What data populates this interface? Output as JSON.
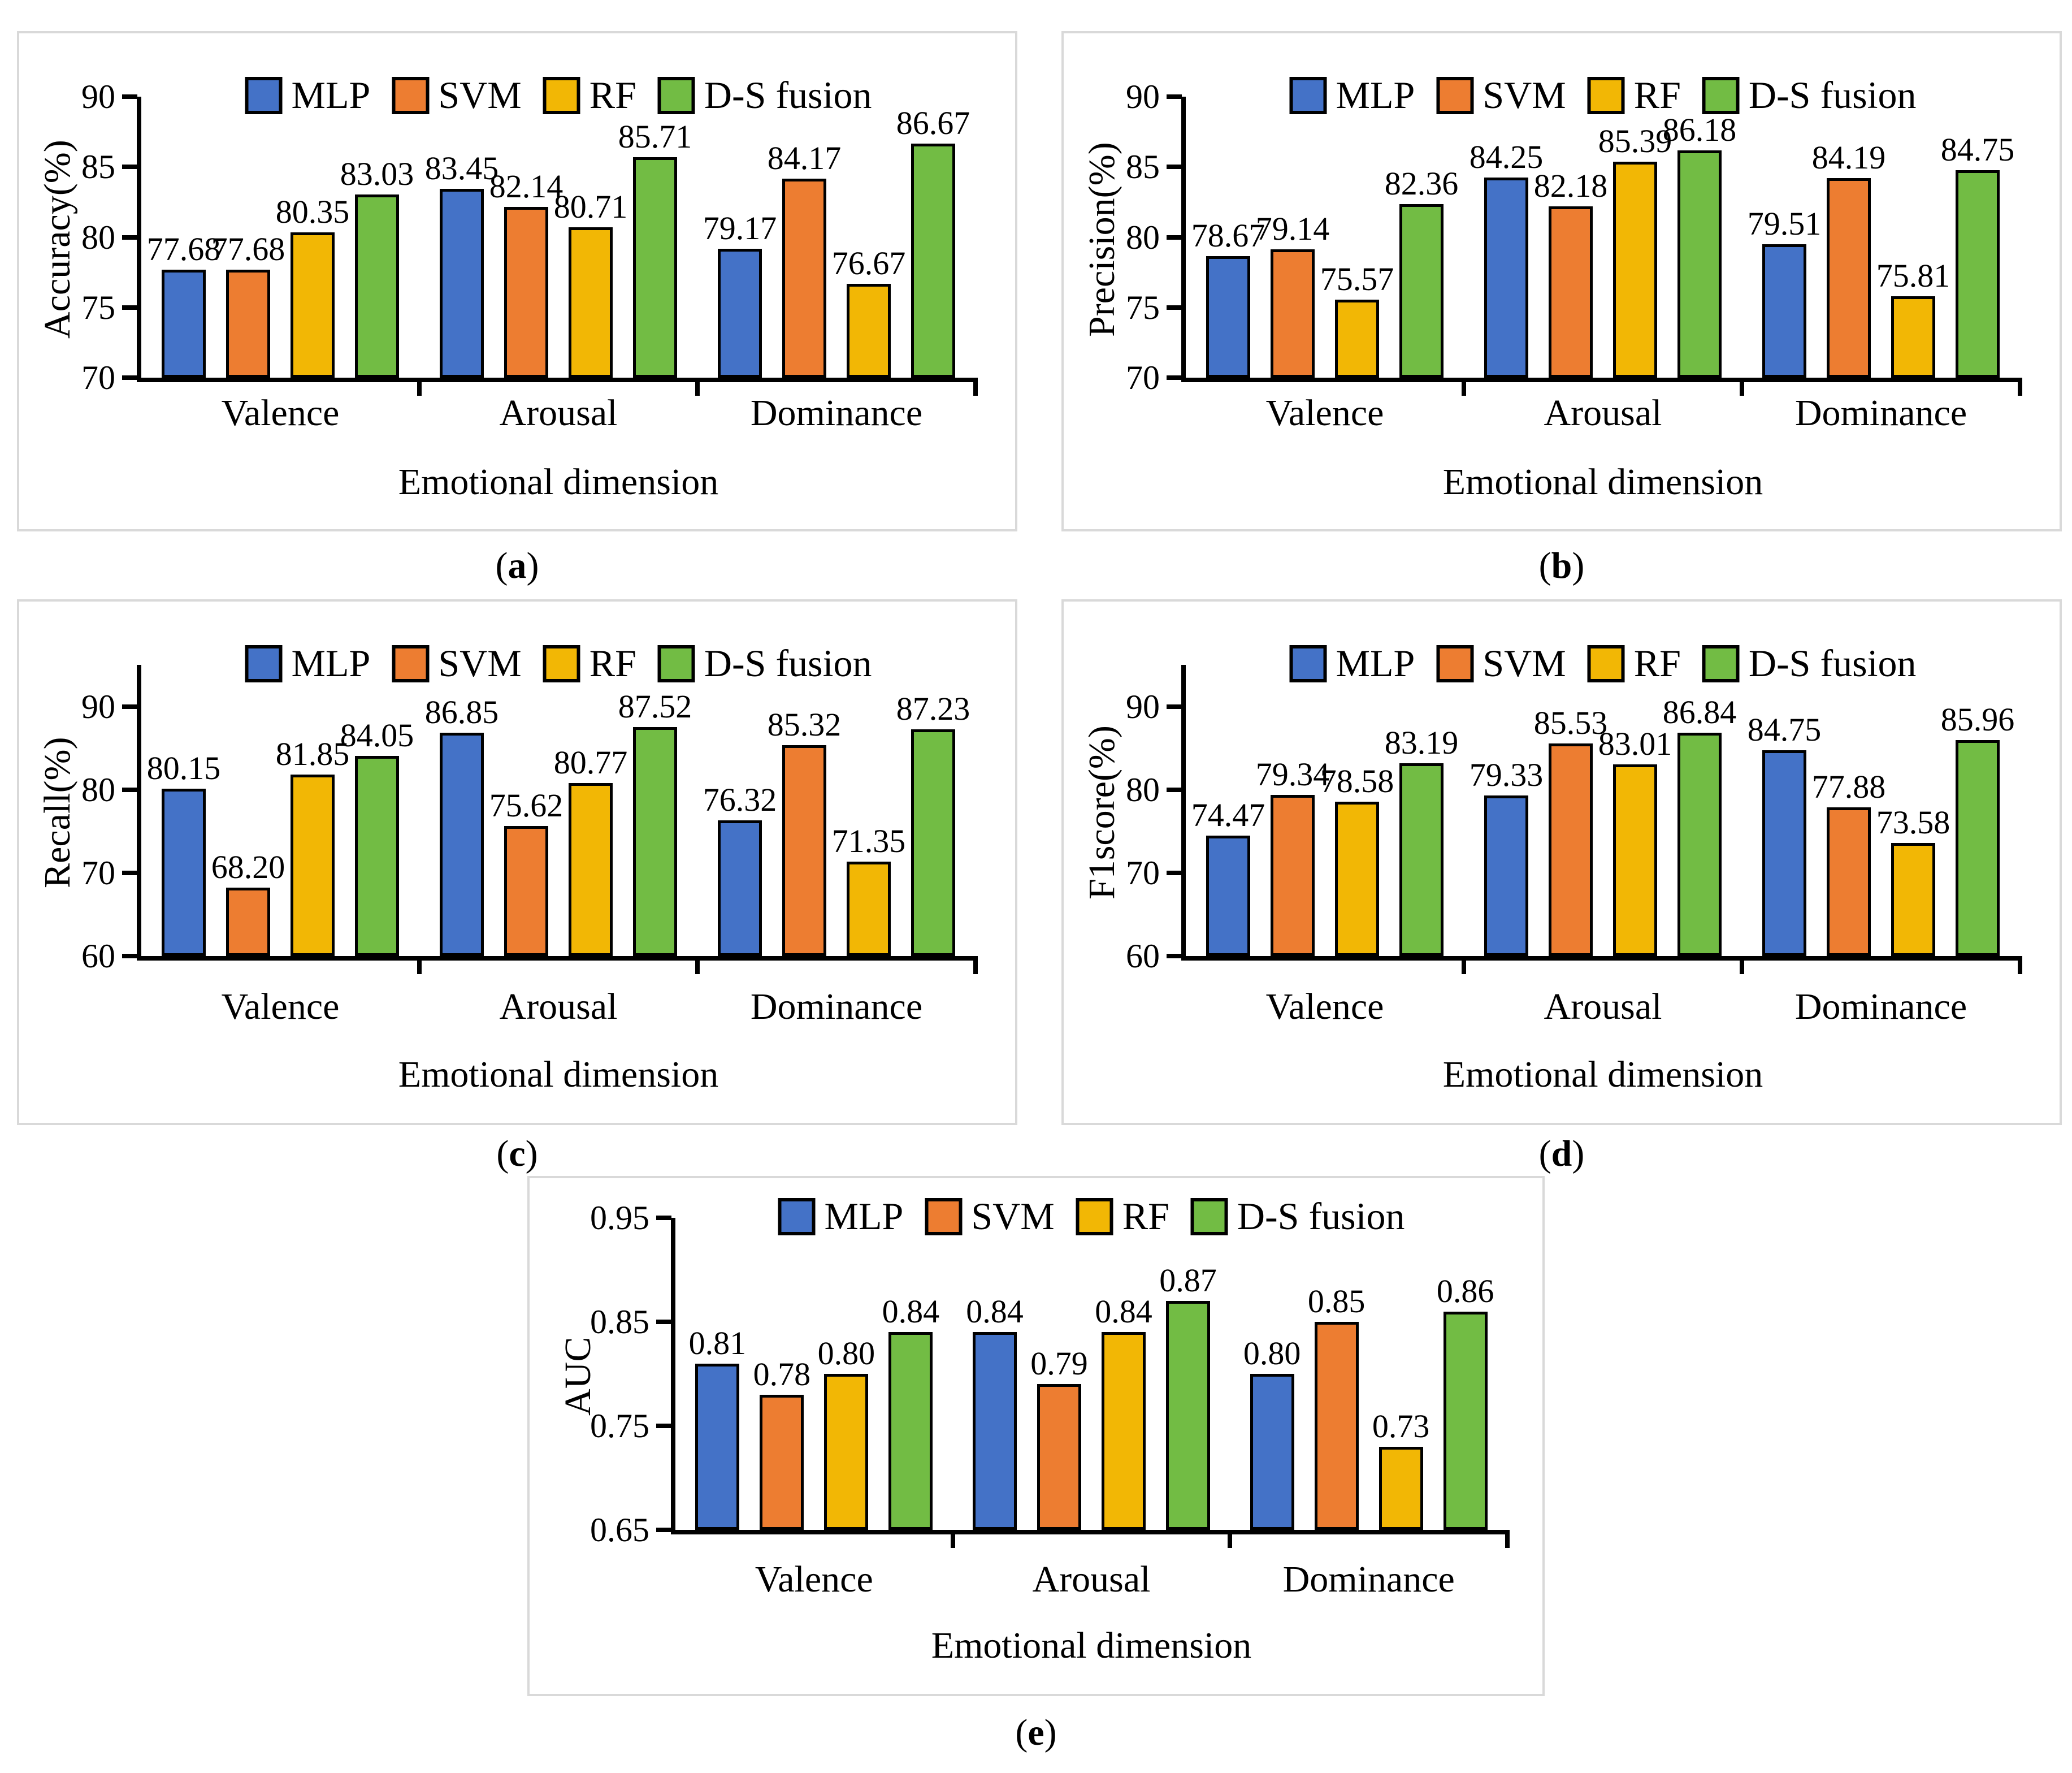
{
  "legend": {
    "items": [
      {
        "label": "MLP",
        "color": "#4472C7"
      },
      {
        "label": "SVM",
        "color": "#ED7D31"
      },
      {
        "label": "RF",
        "color": "#F2B705"
      },
      {
        "label": "D-S fusion",
        "color": "#72BC44"
      }
    ]
  },
  "chart_data": [
    {
      "id": "a",
      "panel_letter": "a",
      "type": "bar",
      "ylabel": "Accuracy(%)",
      "xlabel": "Emotional dimension",
      "categories": [
        "Valence",
        "Arousal",
        "Dominance"
      ],
      "ylim": [
        70,
        90
      ],
      "plot_max": 90,
      "grid": false,
      "legend_position": "top",
      "yticks": [
        {
          "value": 70,
          "label": "70"
        },
        {
          "value": 75,
          "label": "75"
        },
        {
          "value": 80,
          "label": "80"
        },
        {
          "value": 85,
          "label": "85"
        },
        {
          "value": 90,
          "label": "90"
        }
      ],
      "series": [
        {
          "name": "MLP",
          "color": "#4472C7",
          "values": [
            77.68,
            83.45,
            79.17
          ],
          "labels": [
            "77.68",
            "83.45",
            "79.17"
          ]
        },
        {
          "name": "SVM",
          "color": "#ED7D31",
          "values": [
            77.68,
            82.14,
            84.17
          ],
          "labels": [
            "77.68",
            "82.14",
            "84.17"
          ]
        },
        {
          "name": "RF",
          "color": "#F2B705",
          "values": [
            80.35,
            80.71,
            76.67
          ],
          "labels": [
            "80.35",
            "80.71",
            "76.67"
          ]
        },
        {
          "name": "D-S fusion",
          "color": "#72BC44",
          "values": [
            83.03,
            85.71,
            86.67
          ],
          "labels": [
            "83.03",
            "85.71",
            "86.67"
          ]
        }
      ]
    },
    {
      "id": "b",
      "panel_letter": "b",
      "type": "bar",
      "ylabel": "Precision(%)",
      "xlabel": "Emotional dimension",
      "categories": [
        "Valence",
        "Arousal",
        "Dominance"
      ],
      "ylim": [
        70,
        90
      ],
      "plot_max": 90,
      "grid": false,
      "legend_position": "top",
      "yticks": [
        {
          "value": 70,
          "label": "70"
        },
        {
          "value": 75,
          "label": "75"
        },
        {
          "value": 80,
          "label": "80"
        },
        {
          "value": 85,
          "label": "85"
        },
        {
          "value": 90,
          "label": "90"
        }
      ],
      "series": [
        {
          "name": "MLP",
          "color": "#4472C7",
          "values": [
            78.67,
            84.25,
            79.51
          ],
          "labels": [
            "78.67",
            "84.25",
            "79.51"
          ]
        },
        {
          "name": "SVM",
          "color": "#ED7D31",
          "values": [
            79.14,
            82.18,
            84.19
          ],
          "labels": [
            "79.14",
            "82.18",
            "84.19"
          ]
        },
        {
          "name": "RF",
          "color": "#F2B705",
          "values": [
            75.57,
            85.39,
            75.81
          ],
          "labels": [
            "75.57",
            "85.39",
            "75.81"
          ]
        },
        {
          "name": "D-S fusion",
          "color": "#72BC44",
          "values": [
            82.36,
            86.18,
            84.75
          ],
          "labels": [
            "82.36",
            "86.18",
            "84.75"
          ]
        }
      ]
    },
    {
      "id": "c",
      "panel_letter": "c",
      "type": "bar",
      "ylabel": "Recall(%)",
      "xlabel": "Emotional dimension",
      "categories": [
        "Valence",
        "Arousal",
        "Dominance"
      ],
      "ylim": [
        60,
        90
      ],
      "plot_max": 95,
      "grid": false,
      "legend_position": "top",
      "yticks": [
        {
          "value": 60,
          "label": "60"
        },
        {
          "value": 70,
          "label": "70"
        },
        {
          "value": 80,
          "label": "80"
        },
        {
          "value": 90,
          "label": "90"
        }
      ],
      "series": [
        {
          "name": "MLP",
          "color": "#4472C7",
          "values": [
            80.15,
            86.85,
            76.32
          ],
          "labels": [
            "80.15",
            "86.85",
            "76.32"
          ]
        },
        {
          "name": "SVM",
          "color": "#ED7D31",
          "values": [
            68.2,
            75.62,
            85.32
          ],
          "labels": [
            "68.20",
            "75.62",
            "85.32"
          ]
        },
        {
          "name": "RF",
          "color": "#F2B705",
          "values": [
            81.85,
            80.77,
            71.35
          ],
          "labels": [
            "81.85",
            "80.77",
            "71.35"
          ]
        },
        {
          "name": "D-S fusion",
          "color": "#72BC44",
          "values": [
            84.05,
            87.52,
            87.23
          ],
          "labels": [
            "84.05",
            "87.52",
            "87.23"
          ]
        }
      ]
    },
    {
      "id": "d",
      "panel_letter": "d",
      "type": "bar",
      "ylabel": "F1score(%)",
      "xlabel": "Emotional dimension",
      "categories": [
        "Valence",
        "Arousal",
        "Dominance"
      ],
      "ylim": [
        60,
        90
      ],
      "plot_max": 95,
      "grid": false,
      "legend_position": "top",
      "yticks": [
        {
          "value": 60,
          "label": "60"
        },
        {
          "value": 70,
          "label": "70"
        },
        {
          "value": 80,
          "label": "80"
        },
        {
          "value": 90,
          "label": "90"
        }
      ],
      "series": [
        {
          "name": "MLP",
          "color": "#4472C7",
          "values": [
            74.47,
            79.33,
            84.75
          ],
          "labels": [
            "74.47",
            "79.33",
            "84.75"
          ]
        },
        {
          "name": "SVM",
          "color": "#ED7D31",
          "values": [
            79.34,
            85.53,
            77.88
          ],
          "labels": [
            "79.34",
            "85.53",
            "77.88"
          ]
        },
        {
          "name": "RF",
          "color": "#F2B705",
          "values": [
            78.58,
            83.01,
            73.58
          ],
          "labels": [
            "78.58",
            "83.01",
            "73.58"
          ]
        },
        {
          "name": "D-S fusion",
          "color": "#72BC44",
          "values": [
            83.19,
            86.84,
            85.96
          ],
          "labels": [
            "83.19",
            "86.84",
            "85.96"
          ]
        }
      ]
    },
    {
      "id": "e",
      "panel_letter": "e",
      "type": "bar",
      "ylabel": "AUC",
      "xlabel": "Emotional dimension",
      "categories": [
        "Valence",
        "Arousal",
        "Dominance"
      ],
      "ylim": [
        0.65,
        0.95
      ],
      "plot_max": 0.95,
      "grid": false,
      "legend_position": "top",
      "yticks": [
        {
          "value": 0.65,
          "label": "0.65"
        },
        {
          "value": 0.75,
          "label": "0.75"
        },
        {
          "value": 0.85,
          "label": "0.85"
        },
        {
          "value": 0.95,
          "label": "0.95"
        }
      ],
      "series": [
        {
          "name": "MLP",
          "color": "#4472C7",
          "values": [
            0.81,
            0.84,
            0.8
          ],
          "labels": [
            "0.81",
            "0.84",
            "0.80"
          ]
        },
        {
          "name": "SVM",
          "color": "#ED7D31",
          "values": [
            0.78,
            0.79,
            0.85
          ],
          "labels": [
            "0.78",
            "0.79",
            "0.85"
          ]
        },
        {
          "name": "RF",
          "color": "#F2B705",
          "values": [
            0.8,
            0.84,
            0.73
          ],
          "labels": [
            "0.80",
            "0.84",
            "0.73"
          ]
        },
        {
          "name": "D-S fusion",
          "color": "#72BC44",
          "values": [
            0.84,
            0.87,
            0.86
          ],
          "labels": [
            "0.84",
            "0.87",
            "0.86"
          ]
        }
      ]
    }
  ]
}
